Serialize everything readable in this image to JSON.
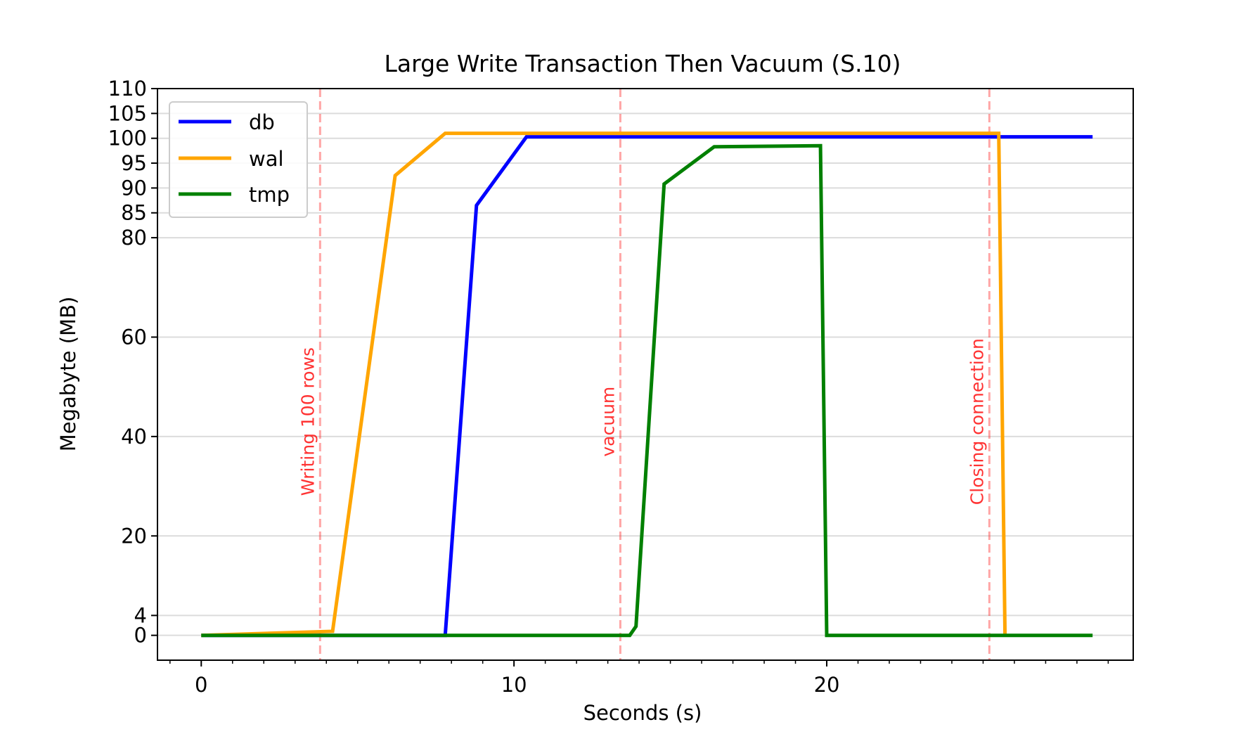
{
  "chart_data": {
    "type": "line",
    "title": "Large Write Transaction Then Vacuum (S.10)",
    "xlabel": "Seconds (s)",
    "ylabel": "Megabyte (MB)",
    "xlim": [
      -1.4,
      29.8
    ],
    "ylim": [
      -5,
      110
    ],
    "xticks": [
      0,
      10,
      20
    ],
    "xtick_labels": [
      "0",
      "10",
      "20"
    ],
    "x_minor_step": 1,
    "yticks": [
      0,
      4,
      20,
      40,
      60,
      80,
      85,
      90,
      95,
      100,
      105,
      110
    ],
    "ytick_labels": [
      "0",
      "4",
      "20",
      "40",
      "60",
      "80",
      "85",
      "90",
      "95",
      "100",
      "105",
      "110"
    ],
    "grid": "horizontal",
    "legend_position": "upper-left",
    "series": [
      {
        "name": "db",
        "color": "#0000ff",
        "x": [
          0,
          7.8,
          8.8,
          10.4,
          28.5
        ],
        "y": [
          0,
          0,
          86.5,
          100.3,
          100.3
        ]
      },
      {
        "name": "wal",
        "color": "#ffa500",
        "x": [
          0,
          4.2,
          6.2,
          7.8,
          25.5,
          25.7
        ],
        "y": [
          0,
          0.8,
          92.5,
          101,
          101,
          0
        ]
      },
      {
        "name": "tmp",
        "color": "#008000",
        "x": [
          0,
          13.7,
          13.9,
          14.8,
          16.4,
          19.8,
          20.0,
          28.5
        ],
        "y": [
          0,
          0,
          1.8,
          90.8,
          98.3,
          98.5,
          0,
          0
        ]
      }
    ],
    "annotations": [
      {
        "x": 3.8,
        "label": "Writing 100 rows",
        "color": "#ff0000"
      },
      {
        "x": 13.4,
        "label": "vacuum",
        "color": "#ff0000"
      },
      {
        "x": 25.2,
        "label": "Closing connection",
        "color": "#ff0000"
      }
    ]
  }
}
